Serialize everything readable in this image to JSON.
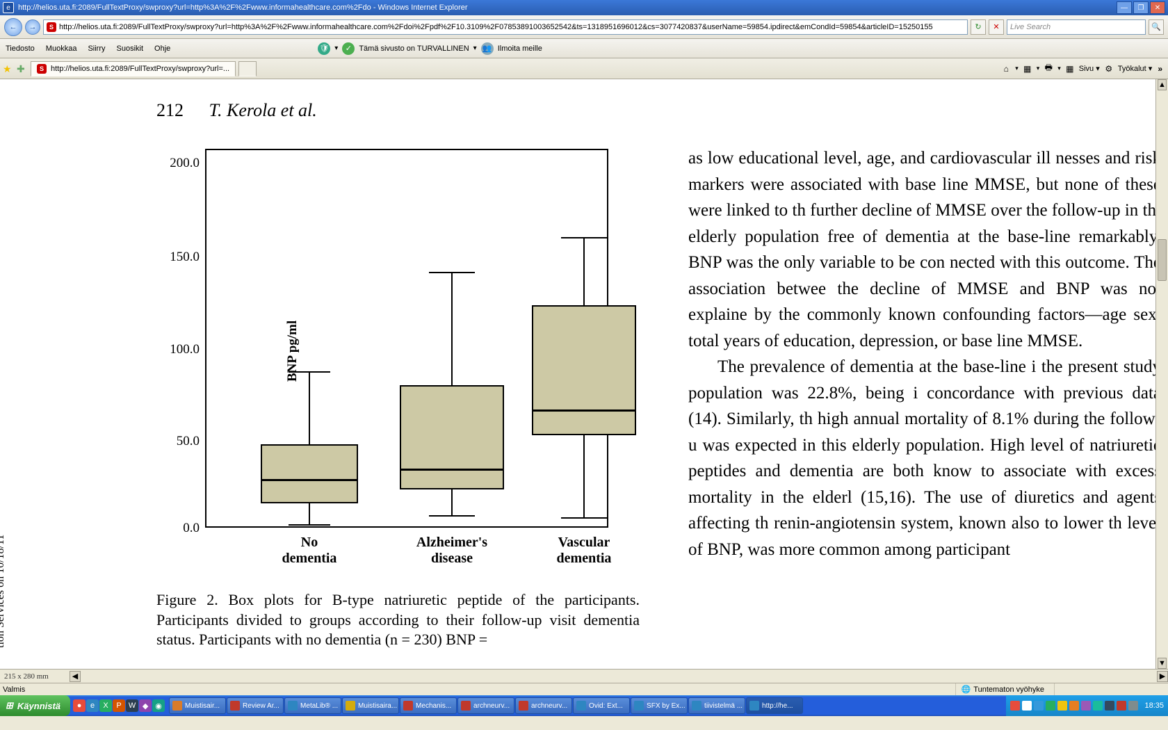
{
  "window": {
    "title": "http://helios.uta.fi:2089/FullTextProxy/swproxy?url=http%3A%2F%2Fwww.informahealthcare.com%2Fdo - Windows Internet Explorer",
    "url": "http://helios.uta.fi:2089/FullTextProxy/swproxy?url=http%3A%2F%2Fwww.informahealthcare.com%2Fdoi%2Fpdf%2F10.3109%2F07853891003652542&ts=1318951696012&cs=3077420837&userName=59854.ipdirect&emCondId=59854&articleID=15250155",
    "search_placeholder": "Live Search",
    "refresh": "↻",
    "stop": "✕"
  },
  "menu": {
    "items": [
      "Tiedosto",
      "Muokkaa",
      "Siirry",
      "Suosikit",
      "Ohje"
    ]
  },
  "security": {
    "text": "Tämä sivusto on TURVALLINEN",
    "report": "Ilmoita meille"
  },
  "tab": {
    "title": "http://helios.uta.fi:2089/FullTextProxy/swproxy?url=..."
  },
  "toolbar": {
    "btns": [
      "⌂",
      "▾",
      "🖶",
      "▾",
      "▦",
      "▾"
    ],
    "sivu": "Sivu ▾",
    "tyokalut": "Työkalut ▾"
  },
  "paper": {
    "page_num": "212",
    "authors": "T. Kerola et al.",
    "ylabel": "BNP pg/ml",
    "yticks": [
      "200.0",
      "150.0",
      "100.0",
      "50.0",
      "0.0"
    ],
    "xcats": [
      "No\ndementia",
      "Alzheimer's\ndisease",
      "Vascular\ndementia"
    ],
    "caption": "Figure 2. Box plots for B-type natriuretic peptide of the participants. Participants divided to groups according to their follow-up visit dementia status. Participants with no dementia (n = 230) BNP =",
    "body_p1": "as low educational level, age, and cardiovascular ill nesses and risk markers were associated with base line MMSE, but none of these were linked to th further decline of MMSE over the follow-up in thi elderly population free of dementia at the base-line remarkably, BNP was the only variable to be con nected with this outcome. The association betwee the decline of MMSE and BNP was not explaine by the commonly known confounding factors—age sex, total years of education, depression, or base line MMSE.",
    "body_p2": "The prevalence of dementia at the base-line i the present study population was 22.8%, being i concordance with previous data (14). Similarly, th high annual mortality of 8.1% during the follow-u was expected in this elderly population. High level of natriuretic peptides and dementia are both know to associate with excess mortality in the elderl (15,16). The use of diuretics and agents affecting th renin-angiotensin system, known also to lower th level of BNP, was more common among participant",
    "watermark": "tion Services on 10/18/11",
    "boxplot": {
      "type": "boxplot",
      "fill_color": "#cdc9a5",
      "border_color": "#000000",
      "ylim": [
        0,
        218
      ],
      "series": [
        {
          "label": "No dementia",
          "whisker_low": 2,
          "q1": 14,
          "median": 28,
          "q3": 48,
          "whisker_high": 90
        },
        {
          "label": "Alzheimer's disease",
          "whisker_low": 7,
          "q1": 22,
          "median": 34,
          "q3": 82,
          "whisker_high": 147
        },
        {
          "label": "Vascular dementia",
          "whisker_low": 6,
          "q1": 53,
          "median": 68,
          "q3": 128,
          "whisker_high": 167
        }
      ]
    }
  },
  "scroll": {
    "dim": "215 x 280 mm"
  },
  "status": {
    "ready": "Valmis",
    "zone": "Tuntematon vyöhyke"
  },
  "taskbar": {
    "start": "Käynnistä",
    "tasks": [
      {
        "label": "Muistisair...",
        "c": "#d97b29"
      },
      {
        "label": "Review Ar...",
        "c": "#c0392b"
      },
      {
        "label": "MetaLib® ...",
        "c": "#2e86c1"
      },
      {
        "label": "Muistisaira...",
        "c": "#d4ac0d"
      },
      {
        "label": "Mechanis...",
        "c": "#c0392b"
      },
      {
        "label": "archneurv...",
        "c": "#c0392b"
      },
      {
        "label": "archneurv...",
        "c": "#c0392b"
      },
      {
        "label": "Ovid: Ext...",
        "c": "#2e86c1"
      },
      {
        "label": "SFX by Ex...",
        "c": "#2e86c1"
      },
      {
        "label": "tiivistelmä ...",
        "c": "#2e86c1"
      },
      {
        "label": "http://he...",
        "c": "#2e86c1",
        "active": true
      }
    ],
    "clock": "18:35"
  }
}
